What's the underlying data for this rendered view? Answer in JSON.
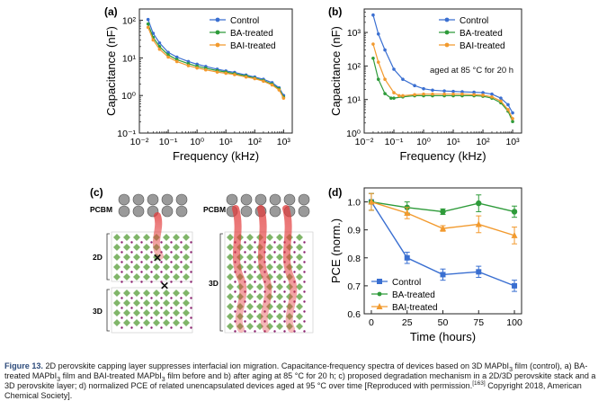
{
  "colors": {
    "control": "#3a6fd1",
    "ba": "#2e9b3a",
    "bai": "#f29a2e",
    "bg_struct": "#f2f2f2",
    "octahedra": "#6aa84f",
    "ion_path": "#e23c3c"
  },
  "panels": {
    "a": {
      "label": "(a)"
    },
    "b": {
      "label": "(b)",
      "annotation": "aged at 85 °C for 20 h"
    },
    "c": {
      "label": "(c)",
      "layers_left": [
        "PCBM",
        "2D",
        "3D"
      ],
      "layers_right": [
        "PCBM",
        "3D"
      ],
      "blocked_marker": "✕"
    },
    "d": {
      "label": "(d)"
    }
  },
  "chart_data": [
    {
      "panel": "a",
      "type": "line",
      "xlabel": "Frequency (kHz)",
      "ylabel": "Capacitance (nF)",
      "xscale": "log",
      "yscale": "log",
      "xlim": [
        0.01,
        2000
      ],
      "ylim": [
        0.1,
        200
      ],
      "xticks": [
        "10⁻²",
        "10⁻¹",
        "10⁰",
        "10¹",
        "10²",
        "10³"
      ],
      "yticks": [
        "10⁻¹",
        "10⁰",
        "10¹",
        "10²"
      ],
      "legend_position": "top-right",
      "series": [
        {
          "name": "Control",
          "color": "#3a6fd1",
          "x": [
            0.02,
            0.03,
            0.05,
            0.1,
            0.2,
            0.5,
            1,
            2,
            5,
            10,
            20,
            50,
            100,
            200,
            400,
            700,
            1000
          ],
          "y": [
            105,
            45,
            25,
            14,
            10.5,
            8,
            6.8,
            5.9,
            5,
            4.5,
            4.1,
            3.5,
            3.1,
            2.7,
            2.2,
            1.6,
            1.0
          ]
        },
        {
          "name": "BA-treated",
          "color": "#2e9b3a",
          "x": [
            0.02,
            0.03,
            0.05,
            0.1,
            0.2,
            0.5,
            1,
            2,
            5,
            10,
            20,
            50,
            100,
            200,
            400,
            700,
            1000
          ],
          "y": [
            80,
            35,
            20,
            12,
            9,
            7,
            6,
            5.3,
            4.6,
            4.2,
            3.8,
            3.3,
            2.9,
            2.5,
            2.0,
            1.5,
            0.9
          ]
        },
        {
          "name": "BAI-treated",
          "color": "#f29a2e",
          "x": [
            0.02,
            0.03,
            0.05,
            0.1,
            0.2,
            0.5,
            1,
            2,
            5,
            10,
            20,
            50,
            100,
            200,
            400,
            700,
            1000
          ],
          "y": [
            65,
            30,
            17,
            10.5,
            8,
            6.2,
            5.4,
            4.8,
            4.2,
            3.9,
            3.6,
            3.1,
            2.8,
            2.4,
            1.9,
            1.4,
            0.85
          ]
        }
      ]
    },
    {
      "panel": "b",
      "type": "line",
      "xlabel": "Frequency (kHz)",
      "ylabel": "Capacitance (nF)",
      "xscale": "log",
      "yscale": "log",
      "xlim": [
        0.01,
        2000
      ],
      "ylim": [
        1,
        5000
      ],
      "xticks": [
        "10⁻²",
        "10⁻¹",
        "10⁰",
        "10¹",
        "10²",
        "10³"
      ],
      "yticks": [
        "10⁰",
        "10¹",
        "10²",
        "10³"
      ],
      "legend_position": "top-right",
      "series": [
        {
          "name": "Control",
          "color": "#3a6fd1",
          "x": [
            0.02,
            0.03,
            0.05,
            0.1,
            0.2,
            0.5,
            1,
            2,
            5,
            10,
            20,
            50,
            100,
            200,
            400,
            700,
            1000
          ],
          "y": [
            3300,
            900,
            300,
            80,
            40,
            26,
            21,
            19,
            18,
            17.5,
            17,
            16.5,
            16,
            14.5,
            11,
            7,
            4
          ]
        },
        {
          "name": "BA-treated",
          "color": "#2e9b3a",
          "x": [
            0.02,
            0.03,
            0.05,
            0.08,
            0.1,
            0.2,
            0.5,
            1,
            2,
            5,
            10,
            20,
            50,
            100,
            200,
            400,
            700,
            1000
          ],
          "y": [
            170,
            40,
            15,
            11,
            11,
            12,
            13,
            13,
            13,
            13,
            13,
            13,
            13,
            12.5,
            11,
            8,
            4.5,
            2.2
          ]
        },
        {
          "name": "BAI-treated",
          "color": "#f29a2e",
          "x": [
            0.02,
            0.03,
            0.05,
            0.1,
            0.15,
            0.2,
            0.5,
            1,
            2,
            5,
            10,
            20,
            50,
            100,
            200,
            400,
            700,
            1000
          ],
          "y": [
            450,
            130,
            40,
            16,
            13,
            13,
            14,
            14.5,
            14.5,
            14.5,
            14.5,
            14.5,
            14,
            13.5,
            12,
            9,
            5,
            2.7
          ]
        }
      ]
    },
    {
      "panel": "d",
      "type": "line",
      "xlabel": "Time (hours)",
      "ylabel": "PCE (norm.)",
      "xlim": [
        -5,
        105
      ],
      "ylim": [
        0.6,
        1.05
      ],
      "xticks": [
        "0",
        "25",
        "50",
        "75",
        "100"
      ],
      "yticks": [
        "0.6",
        "0.7",
        "0.8",
        "0.9",
        "1.0"
      ],
      "legend_position": "bottom-left",
      "series": [
        {
          "name": "Control",
          "color": "#3a6fd1",
          "marker": "square",
          "x": [
            0,
            25,
            50,
            75,
            100
          ],
          "y": [
            1.0,
            0.8,
            0.74,
            0.75,
            0.7
          ],
          "err": [
            0.03,
            0.02,
            0.02,
            0.02,
            0.02
          ]
        },
        {
          "name": "BA-treated",
          "color": "#2e9b3a",
          "marker": "circle",
          "x": [
            0,
            25,
            50,
            75,
            100
          ],
          "y": [
            1.0,
            0.98,
            0.965,
            0.995,
            0.965
          ],
          "err": [
            0.03,
            0.02,
            0.01,
            0.03,
            0.02
          ]
        },
        {
          "name": "BAI-treated",
          "color": "#f29a2e",
          "marker": "triangle",
          "x": [
            0,
            25,
            50,
            75,
            100
          ],
          "y": [
            1.0,
            0.96,
            0.905,
            0.92,
            0.88
          ],
          "err": [
            0.03,
            0.02,
            0.01,
            0.03,
            0.03
          ]
        }
      ]
    }
  ],
  "caption": {
    "label": "Figure 13.",
    "text_1": " 2D perovskite capping layer suppresses interfacial ion migration. Capacitance-frequency spectra of devices based on 3D MAPbI",
    "text_2": " film (control), a) BA-treated MAPbI",
    "text_3": " film and BAI-treated MAPbI",
    "text_4": " film before and b) after aging at 85 °C for 20 h; c) proposed degradation mechanism in a 2D/3D perovskite stack and a 3D perovskite layer; d) normalized PCE of related unencapsulated devices aged at 95 °C over time [Reproduced with permission.",
    "ref": "[163]",
    "text_5": " Copyright 2018, American Chemical Society].",
    "sub3": "3"
  }
}
